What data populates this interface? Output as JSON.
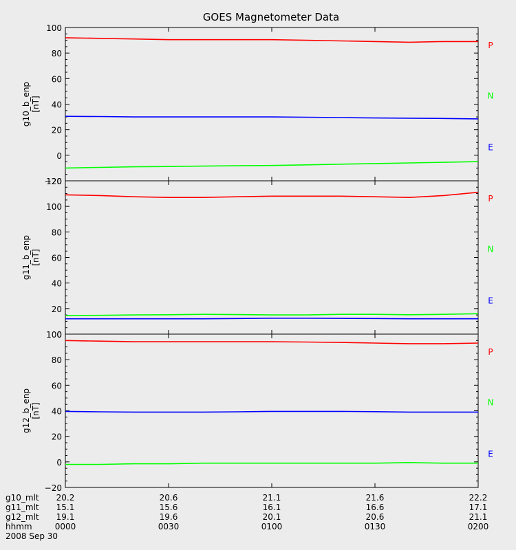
{
  "chart_data": {
    "title": "GOES Magnetometer Data",
    "type": "line",
    "x": {
      "unit": "minutes",
      "range": [
        0,
        120
      ],
      "tick_positions": [
        0,
        30,
        60,
        90,
        120
      ]
    },
    "panels": [
      {
        "ylabel": "g10_b_enp",
        "yunit": "[nT]",
        "ylim": [
          -20,
          100
        ],
        "yticks": [
          -20,
          0,
          20,
          40,
          60,
          80,
          100
        ],
        "series": [
          {
            "name": "P",
            "color": "#ff0000",
            "x": [
              0,
              10,
              20,
              30,
              40,
              50,
              60,
              70,
              80,
              90,
              100,
              110,
              120
            ],
            "y": [
              92,
              91.5,
              91,
              90.5,
              90.5,
              90.5,
              90.5,
              90,
              89.5,
              89,
              88.5,
              89,
              89
            ]
          },
          {
            "name": "N",
            "color": "#00ff00",
            "x": [
              0,
              10,
              20,
              30,
              40,
              50,
              60,
              70,
              80,
              90,
              100,
              110,
              120
            ],
            "y": [
              -10,
              -9.5,
              -9,
              -8.8,
              -8.5,
              -8.2,
              -8,
              -7.5,
              -7,
              -6.5,
              -6,
              -5.5,
              -5
            ]
          },
          {
            "name": "E",
            "color": "#0000ff",
            "x": [
              0,
              10,
              20,
              30,
              40,
              50,
              60,
              70,
              80,
              90,
              100,
              110,
              120
            ],
            "y": [
              30.5,
              30.3,
              30,
              30,
              30,
              30,
              30,
              29.8,
              29.5,
              29.2,
              29,
              28.8,
              28.5
            ]
          }
        ]
      },
      {
        "ylabel": "g11_b_enp",
        "yunit": "[nT]",
        "ylim": [
          0,
          120
        ],
        "yticks": [
          0,
          20,
          40,
          60,
          80,
          100,
          120
        ],
        "series": [
          {
            "name": "P",
            "color": "#ff0000",
            "x": [
              0,
              10,
              20,
              30,
              40,
              50,
              60,
              70,
              80,
              90,
              100,
              110,
              120
            ],
            "y": [
              109,
              108.5,
              107.5,
              107,
              107,
              107.5,
              108,
              108,
              108,
              107.5,
              107,
              108.5,
              111
            ]
          },
          {
            "name": "N",
            "color": "#00ff00",
            "x": [
              0,
              10,
              20,
              30,
              40,
              50,
              60,
              70,
              80,
              90,
              100,
              110,
              120
            ],
            "y": [
              14.5,
              14.7,
              15,
              15.2,
              15.5,
              15.3,
              15,
              15,
              15.5,
              15.5,
              15.2,
              15.5,
              16
            ]
          },
          {
            "name": "E",
            "color": "#0000ff",
            "x": [
              0,
              10,
              20,
              30,
              40,
              50,
              60,
              70,
              80,
              90,
              100,
              110,
              120
            ],
            "y": [
              12,
              12,
              12,
              12,
              12,
              12.2,
              12.5,
              12.5,
              12.3,
              12.2,
              12,
              12,
              12
            ]
          }
        ]
      },
      {
        "ylabel": "g12_b_enp",
        "yunit": "[nT]",
        "ylim": [
          -20,
          100
        ],
        "yticks": [
          -20,
          0,
          20,
          40,
          60,
          80,
          100
        ],
        "series": [
          {
            "name": "P",
            "color": "#ff0000",
            "x": [
              0,
              10,
              20,
              30,
              40,
              50,
              60,
              70,
              80,
              90,
              100,
              110,
              120
            ],
            "y": [
              95,
              94.5,
              94,
              94,
              94,
              94,
              94,
              93.8,
              93.5,
              93,
              92.5,
              92.5,
              93
            ]
          },
          {
            "name": "N",
            "color": "#00ff00",
            "x": [
              0,
              10,
              20,
              30,
              40,
              50,
              60,
              70,
              80,
              90,
              100,
              110,
              120
            ],
            "y": [
              -2,
              -2,
              -1.5,
              -1.5,
              -1,
              -1,
              -1,
              -1,
              -1,
              -1,
              -0.5,
              -1,
              -1
            ]
          },
          {
            "name": "E",
            "color": "#0000ff",
            "x": [
              0,
              10,
              20,
              30,
              40,
              50,
              60,
              70,
              80,
              90,
              100,
              110,
              120
            ],
            "y": [
              39.5,
              39.2,
              39,
              39,
              39,
              39.2,
              39.5,
              39.5,
              39.5,
              39.3,
              39,
              39,
              39
            ]
          }
        ]
      }
    ],
    "legend_order": [
      "P",
      "N",
      "E"
    ],
    "footer": {
      "rows": [
        {
          "label": "g10_mlt",
          "values": [
            "20.2",
            "20.6",
            "21.1",
            "21.6",
            "22.2"
          ]
        },
        {
          "label": "g11_mlt",
          "values": [
            "15.1",
            "15.6",
            "16.1",
            "16.6",
            "17.1"
          ]
        },
        {
          "label": "g12_mlt",
          "values": [
            "19.1",
            "19.6",
            "20.1",
            "20.6",
            "21.1"
          ]
        },
        {
          "label": "hhmm",
          "values": [
            "0000",
            "0030",
            "0100",
            "0130",
            "0200"
          ]
        }
      ],
      "date": "2008 Sep 30"
    }
  }
}
